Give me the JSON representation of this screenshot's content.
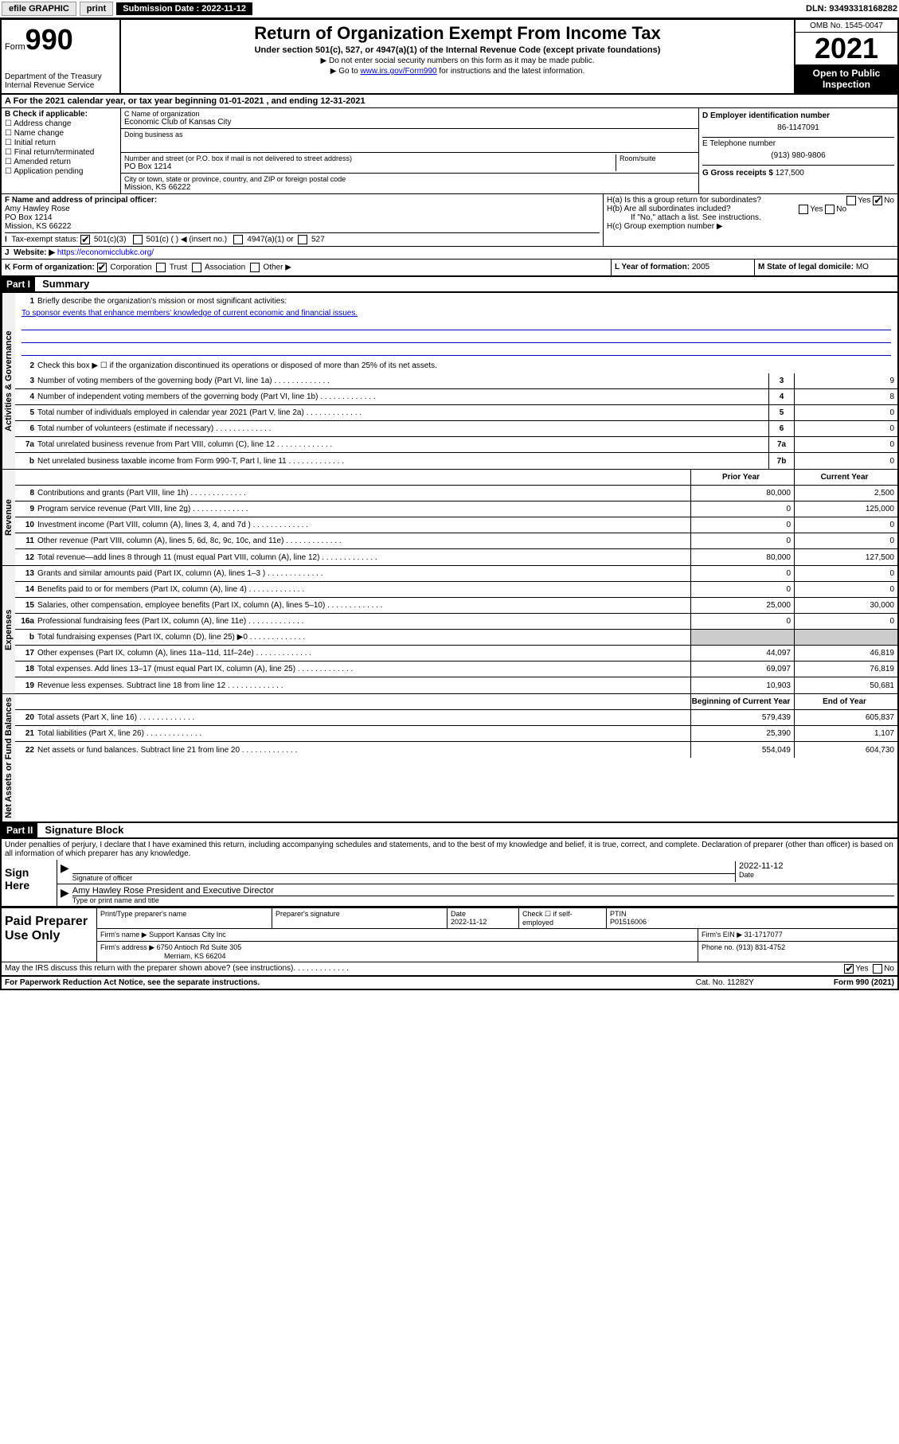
{
  "topbar": {
    "efile": "efile GRAPHIC",
    "print": "print",
    "sub_label": "Submission Date :",
    "sub_date": "2022-11-12",
    "dln": "DLN: 93493318168282"
  },
  "header": {
    "form_label": "Form",
    "form_num": "990",
    "dept": "Department of the Treasury",
    "irs": "Internal Revenue Service",
    "title": "Return of Organization Exempt From Income Tax",
    "sub1": "Under section 501(c), 527, or 4947(a)(1) of the Internal Revenue Code (except private foundations)",
    "sub2": "▶ Do not enter social security numbers on this form as it may be made public.",
    "sub3_pre": "▶ Go to ",
    "sub3_link": "www.irs.gov/Form990",
    "sub3_post": " for instructions and the latest information.",
    "omb": "OMB No. 1545-0047",
    "year": "2021",
    "open": "Open to Public Inspection"
  },
  "rowA": "For the 2021 calendar year, or tax year beginning 01-01-2021   , and ending 12-31-2021",
  "boxB": {
    "label": "B Check if applicable:",
    "items": [
      "Address change",
      "Name change",
      "Initial return",
      "Final return/terminated",
      "Amended return",
      "Application pending"
    ]
  },
  "boxC": {
    "name_label": "C Name of organization",
    "name": "Economic Club of Kansas City",
    "dba_label": "Doing business as",
    "dba": "",
    "addr_label": "Number and street (or P.O. box if mail is not delivered to street address)",
    "room_label": "Room/suite",
    "addr": "PO Box 1214",
    "city_label": "City or town, state or province, country, and ZIP or foreign postal code",
    "city": "Mission, KS  66222"
  },
  "boxD": {
    "ein_label": "D Employer identification number",
    "ein": "86-1147091",
    "tel_label": "E Telephone number",
    "tel": "(913) 980-9806",
    "gross_label": "G Gross receipts $",
    "gross": "127,500"
  },
  "boxF": {
    "label": "F Name and address of principal officer:",
    "name": "Amy Hawley Rose",
    "addr1": "PO Box 1214",
    "addr2": "Mission, KS  66222"
  },
  "boxH": {
    "a_label": "H(a)  Is this a group return for subordinates?",
    "b_label": "H(b)  Are all subordinates included?",
    "b_note": "If \"No,\" attach a list. See instructions.",
    "c_label": "H(c)  Group exemption number ▶",
    "yes": "Yes",
    "no": "No"
  },
  "rowI": {
    "label": "Tax-exempt status:",
    "opts": [
      "501(c)(3)",
      "501(c) (  ) ◀ (insert no.)",
      "4947(a)(1) or",
      "527"
    ]
  },
  "rowJ": {
    "label": "Website: ▶",
    "url": "https://economicclubkc.org/"
  },
  "rowK": {
    "label": "K Form of organization:",
    "opts": [
      "Corporation",
      "Trust",
      "Association",
      "Other ▶"
    ]
  },
  "rowL": {
    "label": "L Year of formation:",
    "val": "2005"
  },
  "rowM": {
    "label": "M State of legal domicile:",
    "val": "MO"
  },
  "part1": {
    "header": "Part I",
    "title": "Summary",
    "line1_label": "Briefly describe the organization's mission or most significant activities:",
    "line1_text": "To sponsor events that enhance members' knowledge of current economic and financial issues.",
    "line2": "Check this box ▶ ☐  if the organization discontinued its operations or disposed of more than 25% of its net assets.",
    "sections": {
      "gov": "Activities & Governance",
      "rev": "Revenue",
      "exp": "Expenses",
      "net": "Net Assets or Fund Balances"
    },
    "col_prior": "Prior Year",
    "col_current": "Current Year",
    "col_boy": "Beginning of Current Year",
    "col_eoy": "End of Year",
    "lines_gov": [
      {
        "n": "3",
        "t": "Number of voting members of the governing body (Part VI, line 1a)",
        "box": "3",
        "v": "9"
      },
      {
        "n": "4",
        "t": "Number of independent voting members of the governing body (Part VI, line 1b)",
        "box": "4",
        "v": "8"
      },
      {
        "n": "5",
        "t": "Total number of individuals employed in calendar year 2021 (Part V, line 2a)",
        "box": "5",
        "v": "0"
      },
      {
        "n": "6",
        "t": "Total number of volunteers (estimate if necessary)",
        "box": "6",
        "v": "0"
      },
      {
        "n": "7a",
        "t": "Total unrelated business revenue from Part VIII, column (C), line 12",
        "box": "7a",
        "v": "0"
      },
      {
        "n": "b",
        "t": "Net unrelated business taxable income from Form 990-T, Part I, line 11",
        "box": "7b",
        "v": "0"
      }
    ],
    "lines_rev": [
      {
        "n": "8",
        "t": "Contributions and grants (Part VIII, line 1h)",
        "p": "80,000",
        "c": "2,500"
      },
      {
        "n": "9",
        "t": "Program service revenue (Part VIII, line 2g)",
        "p": "0",
        "c": "125,000"
      },
      {
        "n": "10",
        "t": "Investment income (Part VIII, column (A), lines 3, 4, and 7d )",
        "p": "0",
        "c": "0"
      },
      {
        "n": "11",
        "t": "Other revenue (Part VIII, column (A), lines 5, 6d, 8c, 9c, 10c, and 11e)",
        "p": "0",
        "c": "0"
      },
      {
        "n": "12",
        "t": "Total revenue—add lines 8 through 11 (must equal Part VIII, column (A), line 12)",
        "p": "80,000",
        "c": "127,500"
      }
    ],
    "lines_exp": [
      {
        "n": "13",
        "t": "Grants and similar amounts paid (Part IX, column (A), lines 1–3 )",
        "p": "0",
        "c": "0"
      },
      {
        "n": "14",
        "t": "Benefits paid to or for members (Part IX, column (A), line 4)",
        "p": "0",
        "c": "0"
      },
      {
        "n": "15",
        "t": "Salaries, other compensation, employee benefits (Part IX, column (A), lines 5–10)",
        "p": "25,000",
        "c": "30,000"
      },
      {
        "n": "16a",
        "t": "Professional fundraising fees (Part IX, column (A), line 11e)",
        "p": "0",
        "c": "0"
      },
      {
        "n": "b",
        "t": "Total fundraising expenses (Part IX, column (D), line 25) ▶0",
        "p": "",
        "c": "",
        "shaded": true
      },
      {
        "n": "17",
        "t": "Other expenses (Part IX, column (A), lines 11a–11d, 11f–24e)",
        "p": "44,097",
        "c": "46,819"
      },
      {
        "n": "18",
        "t": "Total expenses. Add lines 13–17 (must equal Part IX, column (A), line 25)",
        "p": "69,097",
        "c": "76,819"
      },
      {
        "n": "19",
        "t": "Revenue less expenses. Subtract line 18 from line 12",
        "p": "10,903",
        "c": "50,681"
      }
    ],
    "lines_net": [
      {
        "n": "20",
        "t": "Total assets (Part X, line 16)",
        "p": "579,439",
        "c": "605,837"
      },
      {
        "n": "21",
        "t": "Total liabilities (Part X, line 26)",
        "p": "25,390",
        "c": "1,107"
      },
      {
        "n": "22",
        "t": "Net assets or fund balances. Subtract line 21 from line 20",
        "p": "554,049",
        "c": "604,730"
      }
    ]
  },
  "part2": {
    "header": "Part II",
    "title": "Signature Block",
    "declaration": "Under penalties of perjury, I declare that I have examined this return, including accompanying schedules and statements, and to the best of my knowledge and belief, it is true, correct, and complete. Declaration of preparer (other than officer) is based on all information of which preparer has any knowledge."
  },
  "sign": {
    "label": "Sign Here",
    "sig_label": "Signature of officer",
    "date_label": "Date",
    "date": "2022-11-12",
    "name": "Amy Hawley Rose  President and Executive Director",
    "name_label": "Type or print name and title"
  },
  "paid": {
    "label": "Paid Preparer Use Only",
    "col1": "Print/Type preparer's name",
    "col2": "Preparer's signature",
    "col3_label": "Date",
    "col3": "2022-11-12",
    "col4": "Check ☐ if self-employed",
    "col5_label": "PTIN",
    "col5": "P01516006",
    "firm_label": "Firm's name    ▶",
    "firm": "Support Kansas City Inc",
    "ein_label": "Firm's EIN ▶",
    "ein": "31-1717077",
    "addr_label": "Firm's address ▶",
    "addr1": "6750 Antioch Rd Suite 305",
    "addr2": "Merriam, KS  66204",
    "phone_label": "Phone no.",
    "phone": "(913) 831-4752"
  },
  "footer": {
    "discuss": "May the IRS discuss this return with the preparer shown above? (see instructions)",
    "yes": "Yes",
    "no": "No",
    "paperwork": "For Paperwork Reduction Act Notice, see the separate instructions.",
    "cat": "Cat. No. 11282Y",
    "form": "Form 990 (2021)"
  }
}
